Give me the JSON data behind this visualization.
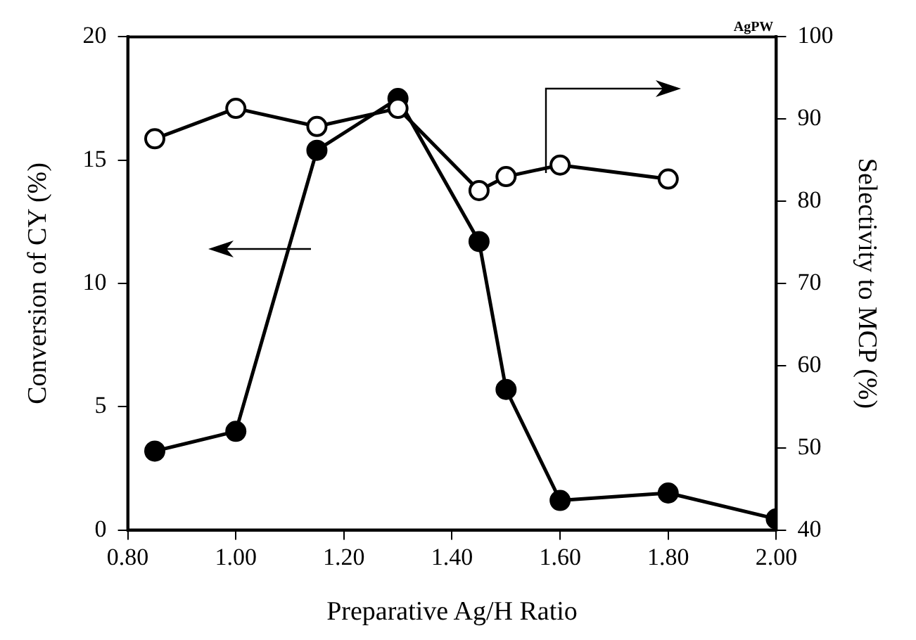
{
  "chart_data": {
    "type": "line",
    "xlabel": "Preparative Ag/H Ratio",
    "ylabel": "Conversion of CY (%)",
    "y2label": "Selectivity to MCP (%)",
    "annotations": [
      "AgPW"
    ],
    "xlim": [
      0.8,
      2.0
    ],
    "xticks": [
      {
        "value": 0.8,
        "label": "0.80"
      },
      {
        "value": 1.0,
        "label": "1.00"
      },
      {
        "value": 1.2,
        "label": "1.20"
      },
      {
        "value": 1.4,
        "label": "1.40"
      },
      {
        "value": 1.6,
        "label": "1.60"
      },
      {
        "value": 1.8,
        "label": "1.80"
      },
      {
        "value": 2.0,
        "label": "2.00"
      }
    ],
    "ylim": [
      0,
      20
    ],
    "yticks": [
      0,
      5,
      10,
      15,
      20
    ],
    "y2lim": [
      40,
      100
    ],
    "y2ticks": [
      40,
      50,
      60,
      70,
      80,
      90,
      100
    ],
    "marker": "circle",
    "line_style": "solid",
    "grid": false,
    "legend": false,
    "series": [
      {
        "color": "#000000",
        "x": [
          0.85,
          1.0,
          1.15,
          1.3,
          1.45,
          1.5,
          1.6,
          1.8,
          2.0
        ],
        "values": [
          3.2,
          4.0,
          15.4,
          17.5,
          11.7,
          5.7,
          1.2,
          1.5,
          0.45
        ]
      },
      {
        "color": "#000000",
        "axis": "y2",
        "x": [
          0.85,
          1.0,
          1.15,
          1.3,
          1.45,
          1.5,
          1.6,
          1.8
        ],
        "values": [
          87.6,
          91.3,
          89.1,
          91.3,
          81.3,
          83.0,
          84.4,
          82.7
        ]
      }
    ]
  }
}
